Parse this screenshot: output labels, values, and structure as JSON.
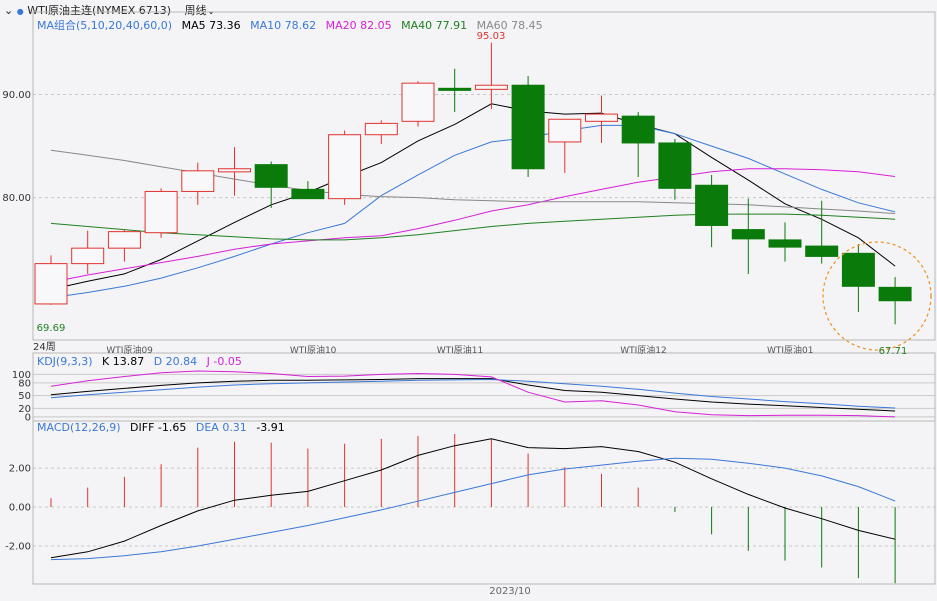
{
  "header": {
    "indicator_arrow": "⌄",
    "dot": "●",
    "instrument": "WTI原油主连(NYMEX 6713)",
    "period": "周线",
    "period_arrow": "⌄"
  },
  "ma_legend": {
    "title": "MA组合(5,10,20,40,60,0)",
    "items": [
      {
        "label": "MA5 73.36",
        "color": "#000000"
      },
      {
        "label": "MA10 78.62",
        "color": "#3a78d8"
      },
      {
        "label": "MA20 82.05",
        "color": "#d61fd6"
      },
      {
        "label": "MA40 77.91",
        "color": "#208020"
      },
      {
        "label": "MA60 78.45",
        "color": "#888888"
      }
    ]
  },
  "kdj_legend": {
    "title": "KDJ(9,3,3)",
    "items": [
      {
        "label": "K 13.87",
        "color": "#000000"
      },
      {
        "label": "D 20.84",
        "color": "#3a78d8"
      },
      {
        "label": "J -0.05",
        "color": "#d61fd6"
      }
    ]
  },
  "macd_legend": {
    "title": "MACD(12,26,9)",
    "items": [
      {
        "label": "DIFF -1.65",
        "color": "#000000"
      },
      {
        "label": "DEA 0.31",
        "color": "#3a78d8"
      },
      {
        "label": "-3.91",
        "color": "#000000"
      }
    ]
  },
  "annotations": {
    "high": "95.03",
    "low_left": "69.69",
    "low_right": "67.71",
    "period_label": "24周",
    "bottom_date": "2023/10"
  },
  "colors": {
    "up": "#e0322e",
    "down": "#0a7a0a",
    "grid": "#c8c8c8",
    "circle": "#f0952a"
  },
  "chart_data": [
    {
      "type": "candlestick",
      "title": "WTI原油主连(NYMEX 6713)",
      "ylim": [
        66,
        98
      ],
      "yticks": [
        {
          "value": 80,
          "label": "80.00"
        },
        {
          "value": 90,
          "label": "90.00"
        }
      ],
      "xticks": [
        {
          "index": 2,
          "label": "WTI原油09"
        },
        {
          "index": 7,
          "label": "WTI原油10"
        },
        {
          "index": 11,
          "label": "WTI原油11"
        },
        {
          "index": 16,
          "label": "WTI原油12"
        },
        {
          "index": 20,
          "label": "WTI原油01"
        }
      ],
      "candles": [
        {
          "o": 69.69,
          "h": 74.4,
          "l": 69.6,
          "c": 73.6
        },
        {
          "o": 73.6,
          "h": 76.8,
          "l": 72.6,
          "c": 75.1
        },
        {
          "o": 75.1,
          "h": 76.9,
          "l": 73.8,
          "c": 76.7
        },
        {
          "o": 76.6,
          "h": 80.9,
          "l": 76.1,
          "c": 80.6
        },
        {
          "o": 80.6,
          "h": 83.4,
          "l": 79.3,
          "c": 82.6
        },
        {
          "o": 82.5,
          "h": 84.9,
          "l": 80.2,
          "c": 82.8
        },
        {
          "o": 83.2,
          "h": 83.5,
          "l": 79.0,
          "c": 81.0
        },
        {
          "o": 80.8,
          "h": 81.6,
          "l": 79.9,
          "c": 79.9
        },
        {
          "o": 79.9,
          "h": 86.5,
          "l": 79.3,
          "c": 86.1
        },
        {
          "o": 86.1,
          "h": 87.5,
          "l": 85.2,
          "c": 87.2
        },
        {
          "o": 87.4,
          "h": 91.3,
          "l": 86.9,
          "c": 91.1
        },
        {
          "o": 90.6,
          "h": 92.5,
          "l": 88.3,
          "c": 90.4
        },
        {
          "o": 90.5,
          "h": 95.03,
          "l": 88.6,
          "c": 90.9
        },
        {
          "o": 90.9,
          "h": 91.8,
          "l": 82.0,
          "c": 82.8
        },
        {
          "o": 85.4,
          "h": 87.6,
          "l": 82.4,
          "c": 87.6
        },
        {
          "o": 87.4,
          "h": 89.9,
          "l": 85.3,
          "c": 88.1
        },
        {
          "o": 87.9,
          "h": 88.3,
          "l": 82.0,
          "c": 85.3
        },
        {
          "o": 85.3,
          "h": 85.7,
          "l": 79.8,
          "c": 80.9
        },
        {
          "o": 81.2,
          "h": 82.2,
          "l": 75.2,
          "c": 77.3
        },
        {
          "o": 76.9,
          "h": 79.9,
          "l": 72.6,
          "c": 76.0
        },
        {
          "o": 75.9,
          "h": 77.6,
          "l": 73.8,
          "c": 75.2
        },
        {
          "o": 75.3,
          "h": 79.7,
          "l": 73.6,
          "c": 74.3
        },
        {
          "o": 74.6,
          "h": 75.5,
          "l": 68.9,
          "c": 71.4
        },
        {
          "o": 71.3,
          "h": 72.3,
          "l": 67.71,
          "c": 70.0
        }
      ],
      "ma_series": [
        {
          "name": "MA5",
          "color": "#000000",
          "start": 0,
          "values": [
            71.1,
            71.9,
            72.6,
            74.0,
            75.8,
            77.6,
            79.3,
            80.5,
            82.0,
            83.4,
            85.5,
            87.1,
            89.1,
            88.4,
            88.1,
            88.2,
            87.1,
            86.2,
            83.9,
            81.7,
            79.4,
            77.9,
            76.1,
            73.36
          ]
        },
        {
          "name": "MA10",
          "color": "#3a78d8",
          "start": 0,
          "values": [
            70.3,
            70.8,
            71.4,
            72.2,
            73.2,
            74.3,
            75.5,
            76.6,
            77.5,
            80.2,
            82.2,
            84.1,
            85.4,
            85.8,
            86.5,
            87.0,
            87.0,
            86.2,
            85.0,
            83.8,
            82.3,
            80.8,
            79.5,
            78.62
          ]
        },
        {
          "name": "MA20",
          "color": "#d61fd6",
          "start": 0,
          "values": [
            71.8,
            72.5,
            73.1,
            73.7,
            74.3,
            75.0,
            75.5,
            75.8,
            76.1,
            76.3,
            77.0,
            77.8,
            78.7,
            79.3,
            80.1,
            80.8,
            81.5,
            82.0,
            82.5,
            82.8,
            82.8,
            82.7,
            82.5,
            82.05
          ]
        },
        {
          "name": "MA40",
          "color": "#208020",
          "start": 0,
          "values": [
            77.5,
            77.2,
            76.9,
            76.6,
            76.4,
            76.2,
            76.0,
            75.9,
            75.9,
            76.1,
            76.4,
            76.8,
            77.2,
            77.5,
            77.7,
            77.9,
            78.1,
            78.3,
            78.4,
            78.4,
            78.4,
            78.3,
            78.1,
            77.91
          ]
        },
        {
          "name": "MA60",
          "color": "#888888",
          "start": 0,
          "values": [
            84.6,
            84.1,
            83.6,
            83.0,
            82.4,
            81.8,
            81.2,
            80.7,
            80.3,
            80.1,
            80.0,
            79.8,
            79.7,
            79.6,
            79.6,
            79.6,
            79.6,
            79.5,
            79.4,
            79.3,
            79.1,
            78.9,
            78.7,
            78.45
          ]
        }
      ]
    },
    {
      "type": "line",
      "title": "KDJ(9,3,3)",
      "ylim": [
        -5,
        115
      ],
      "yticks": [
        {
          "value": 0,
          "label": "0"
        },
        {
          "value": 20,
          "label": "20"
        },
        {
          "value": 50,
          "label": "50"
        },
        {
          "value": 80,
          "label": "80"
        },
        {
          "value": 100,
          "label": "100"
        }
      ],
      "series": [
        {
          "name": "K",
          "color": "#000000",
          "values": [
            52,
            60,
            67,
            74,
            80,
            84,
            86,
            86,
            87,
            88,
            90,
            90,
            90,
            75,
            62,
            58,
            50,
            42,
            35,
            30,
            26,
            22,
            18,
            13.87
          ]
        },
        {
          "name": "D",
          "color": "#3a78d8",
          "values": [
            45,
            52,
            58,
            64,
            70,
            75,
            78,
            80,
            82,
            84,
            86,
            87,
            88,
            84,
            78,
            72,
            65,
            56,
            48,
            42,
            36,
            31,
            25,
            20.84
          ]
        },
        {
          "name": "J",
          "color": "#d61fd6",
          "values": [
            72,
            85,
            95,
            104,
            108,
            106,
            102,
            95,
            96,
            100,
            102,
            100,
            94,
            58,
            35,
            38,
            28,
            12,
            5,
            3,
            4,
            4,
            3,
            -0.05
          ]
        }
      ]
    },
    {
      "type": "bar+line",
      "title": "MACD(12,26,9)",
      "ylim": [
        -3.9,
        3.8
      ],
      "yticks": [
        {
          "value": -2,
          "label": "-2.00"
        },
        {
          "value": 0,
          "label": "0.00"
        },
        {
          "value": 2,
          "label": "2.00"
        }
      ],
      "xticks": [
        {
          "index": 12,
          "label": "2023/10"
        }
      ],
      "hist": [
        0.45,
        1.0,
        1.55,
        2.2,
        3.05,
        3.35,
        3.3,
        3.0,
        3.25,
        3.5,
        3.65,
        3.75,
        3.5,
        2.75,
        2.05,
        1.7,
        1.0,
        -0.25,
        -1.4,
        -2.25,
        -2.75,
        -3.1,
        -3.65,
        -3.91
      ],
      "series": [
        {
          "name": "DIFF",
          "color": "#000000",
          "values": [
            -2.6,
            -2.3,
            -1.75,
            -0.95,
            -0.2,
            0.35,
            0.6,
            0.8,
            1.35,
            1.9,
            2.65,
            3.15,
            3.5,
            3.05,
            3.0,
            3.1,
            2.85,
            2.3,
            1.45,
            0.65,
            -0.05,
            -0.6,
            -1.2,
            -1.65
          ]
        },
        {
          "name": "DEA",
          "color": "#3a78d8",
          "values": [
            -2.7,
            -2.65,
            -2.5,
            -2.3,
            -2.0,
            -1.65,
            -1.3,
            -0.95,
            -0.55,
            -0.15,
            0.3,
            0.75,
            1.2,
            1.65,
            1.95,
            2.15,
            2.35,
            2.5,
            2.45,
            2.25,
            2.0,
            1.6,
            1.05,
            0.31
          ]
        }
      ]
    }
  ]
}
